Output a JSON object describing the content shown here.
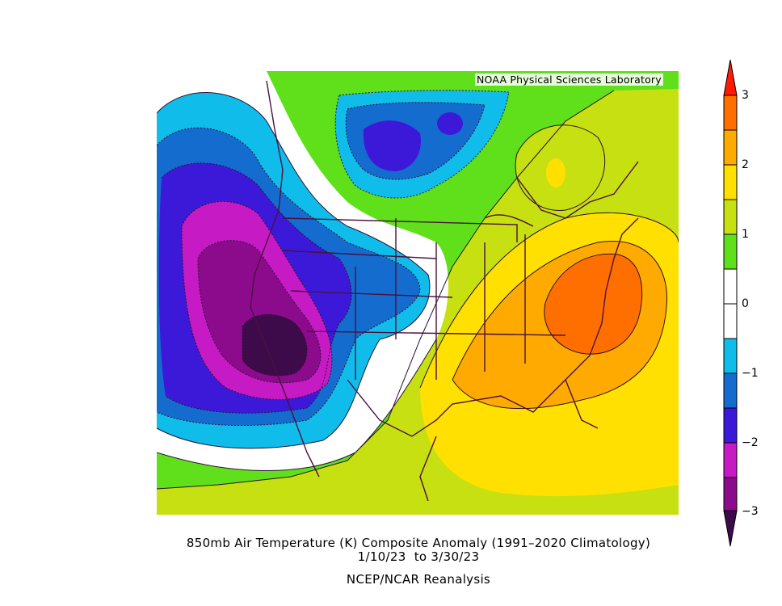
{
  "map": {
    "credit": "NOAA Physical Sciences Laboratory",
    "caption_line1": "850mb Air Temperature (K) Composite Anomaly (1991–2020 Climatology)",
    "caption_line2": "1/10/23  to 3/30/23",
    "caption_line3": "NCEP/NCAR Reanalysis"
  },
  "colorbar": {
    "labels": [
      "3",
      "2",
      "1",
      "0",
      "−1",
      "−2",
      "−3"
    ],
    "levels": [
      {
        "value": -3.0,
        "color": "#3d0a4a"
      },
      {
        "value": -2.5,
        "color": "#8c0b8c"
      },
      {
        "value": -2.0,
        "color": "#c61ac4"
      },
      {
        "value": -1.5,
        "color": "#3c19d8"
      },
      {
        "value": -1.0,
        "color": "#146ccf"
      },
      {
        "value": -0.5,
        "color": "#10bdea"
      },
      {
        "value": 0.0,
        "color": "#ffffff"
      },
      {
        "value": 0.5,
        "color": "#5fe01a"
      },
      {
        "value": 1.0,
        "color": "#c6e012"
      },
      {
        "value": 1.5,
        "color": "#ffe000"
      },
      {
        "value": 2.0,
        "color": "#ffaa00"
      },
      {
        "value": 2.5,
        "color": "#ff6f00"
      },
      {
        "value": 3.0,
        "color": "#ff1a00"
      }
    ]
  }
}
